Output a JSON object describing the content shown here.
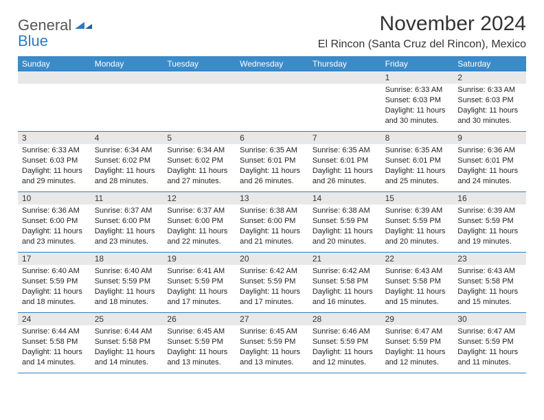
{
  "logo": {
    "text1": "General",
    "text2": "Blue"
  },
  "title": "November 2024",
  "subtitle": "El Rincon (Santa Cruz del Rincon), Mexico",
  "colors": {
    "header_bg": "#3b8bc9",
    "border": "#2b7bbf",
    "date_bg": "#e8e8e8",
    "text": "#222222",
    "logo_gray": "#555555",
    "logo_blue": "#2b7bbf"
  },
  "day_names": [
    "Sunday",
    "Monday",
    "Tuesday",
    "Wednesday",
    "Thursday",
    "Friday",
    "Saturday"
  ],
  "weeks": [
    [
      {
        "date": "",
        "empty": true
      },
      {
        "date": "",
        "empty": true
      },
      {
        "date": "",
        "empty": true
      },
      {
        "date": "",
        "empty": true
      },
      {
        "date": "",
        "empty": true
      },
      {
        "date": "1",
        "sunrise": "Sunrise: 6:33 AM",
        "sunset": "Sunset: 6:03 PM",
        "daylight": "Daylight: 11 hours and 30 minutes."
      },
      {
        "date": "2",
        "sunrise": "Sunrise: 6:33 AM",
        "sunset": "Sunset: 6:03 PM",
        "daylight": "Daylight: 11 hours and 30 minutes."
      }
    ],
    [
      {
        "date": "3",
        "sunrise": "Sunrise: 6:33 AM",
        "sunset": "Sunset: 6:03 PM",
        "daylight": "Daylight: 11 hours and 29 minutes."
      },
      {
        "date": "4",
        "sunrise": "Sunrise: 6:34 AM",
        "sunset": "Sunset: 6:02 PM",
        "daylight": "Daylight: 11 hours and 28 minutes."
      },
      {
        "date": "5",
        "sunrise": "Sunrise: 6:34 AM",
        "sunset": "Sunset: 6:02 PM",
        "daylight": "Daylight: 11 hours and 27 minutes."
      },
      {
        "date": "6",
        "sunrise": "Sunrise: 6:35 AM",
        "sunset": "Sunset: 6:01 PM",
        "daylight": "Daylight: 11 hours and 26 minutes."
      },
      {
        "date": "7",
        "sunrise": "Sunrise: 6:35 AM",
        "sunset": "Sunset: 6:01 PM",
        "daylight": "Daylight: 11 hours and 26 minutes."
      },
      {
        "date": "8",
        "sunrise": "Sunrise: 6:35 AM",
        "sunset": "Sunset: 6:01 PM",
        "daylight": "Daylight: 11 hours and 25 minutes."
      },
      {
        "date": "9",
        "sunrise": "Sunrise: 6:36 AM",
        "sunset": "Sunset: 6:01 PM",
        "daylight": "Daylight: 11 hours and 24 minutes."
      }
    ],
    [
      {
        "date": "10",
        "sunrise": "Sunrise: 6:36 AM",
        "sunset": "Sunset: 6:00 PM",
        "daylight": "Daylight: 11 hours and 23 minutes."
      },
      {
        "date": "11",
        "sunrise": "Sunrise: 6:37 AM",
        "sunset": "Sunset: 6:00 PM",
        "daylight": "Daylight: 11 hours and 23 minutes."
      },
      {
        "date": "12",
        "sunrise": "Sunrise: 6:37 AM",
        "sunset": "Sunset: 6:00 PM",
        "daylight": "Daylight: 11 hours and 22 minutes."
      },
      {
        "date": "13",
        "sunrise": "Sunrise: 6:38 AM",
        "sunset": "Sunset: 6:00 PM",
        "daylight": "Daylight: 11 hours and 21 minutes."
      },
      {
        "date": "14",
        "sunrise": "Sunrise: 6:38 AM",
        "sunset": "Sunset: 5:59 PM",
        "daylight": "Daylight: 11 hours and 20 minutes."
      },
      {
        "date": "15",
        "sunrise": "Sunrise: 6:39 AM",
        "sunset": "Sunset: 5:59 PM",
        "daylight": "Daylight: 11 hours and 20 minutes."
      },
      {
        "date": "16",
        "sunrise": "Sunrise: 6:39 AM",
        "sunset": "Sunset: 5:59 PM",
        "daylight": "Daylight: 11 hours and 19 minutes."
      }
    ],
    [
      {
        "date": "17",
        "sunrise": "Sunrise: 6:40 AM",
        "sunset": "Sunset: 5:59 PM",
        "daylight": "Daylight: 11 hours and 18 minutes."
      },
      {
        "date": "18",
        "sunrise": "Sunrise: 6:40 AM",
        "sunset": "Sunset: 5:59 PM",
        "daylight": "Daylight: 11 hours and 18 minutes."
      },
      {
        "date": "19",
        "sunrise": "Sunrise: 6:41 AM",
        "sunset": "Sunset: 5:59 PM",
        "daylight": "Daylight: 11 hours and 17 minutes."
      },
      {
        "date": "20",
        "sunrise": "Sunrise: 6:42 AM",
        "sunset": "Sunset: 5:59 PM",
        "daylight": "Daylight: 11 hours and 17 minutes."
      },
      {
        "date": "21",
        "sunrise": "Sunrise: 6:42 AM",
        "sunset": "Sunset: 5:58 PM",
        "daylight": "Daylight: 11 hours and 16 minutes."
      },
      {
        "date": "22",
        "sunrise": "Sunrise: 6:43 AM",
        "sunset": "Sunset: 5:58 PM",
        "daylight": "Daylight: 11 hours and 15 minutes."
      },
      {
        "date": "23",
        "sunrise": "Sunrise: 6:43 AM",
        "sunset": "Sunset: 5:58 PM",
        "daylight": "Daylight: 11 hours and 15 minutes."
      }
    ],
    [
      {
        "date": "24",
        "sunrise": "Sunrise: 6:44 AM",
        "sunset": "Sunset: 5:58 PM",
        "daylight": "Daylight: 11 hours and 14 minutes."
      },
      {
        "date": "25",
        "sunrise": "Sunrise: 6:44 AM",
        "sunset": "Sunset: 5:58 PM",
        "daylight": "Daylight: 11 hours and 14 minutes."
      },
      {
        "date": "26",
        "sunrise": "Sunrise: 6:45 AM",
        "sunset": "Sunset: 5:59 PM",
        "daylight": "Daylight: 11 hours and 13 minutes."
      },
      {
        "date": "27",
        "sunrise": "Sunrise: 6:45 AM",
        "sunset": "Sunset: 5:59 PM",
        "daylight": "Daylight: 11 hours and 13 minutes."
      },
      {
        "date": "28",
        "sunrise": "Sunrise: 6:46 AM",
        "sunset": "Sunset: 5:59 PM",
        "daylight": "Daylight: 11 hours and 12 minutes."
      },
      {
        "date": "29",
        "sunrise": "Sunrise: 6:47 AM",
        "sunset": "Sunset: 5:59 PM",
        "daylight": "Daylight: 11 hours and 12 minutes."
      },
      {
        "date": "30",
        "sunrise": "Sunrise: 6:47 AM",
        "sunset": "Sunset: 5:59 PM",
        "daylight": "Daylight: 11 hours and 11 minutes."
      }
    ]
  ]
}
